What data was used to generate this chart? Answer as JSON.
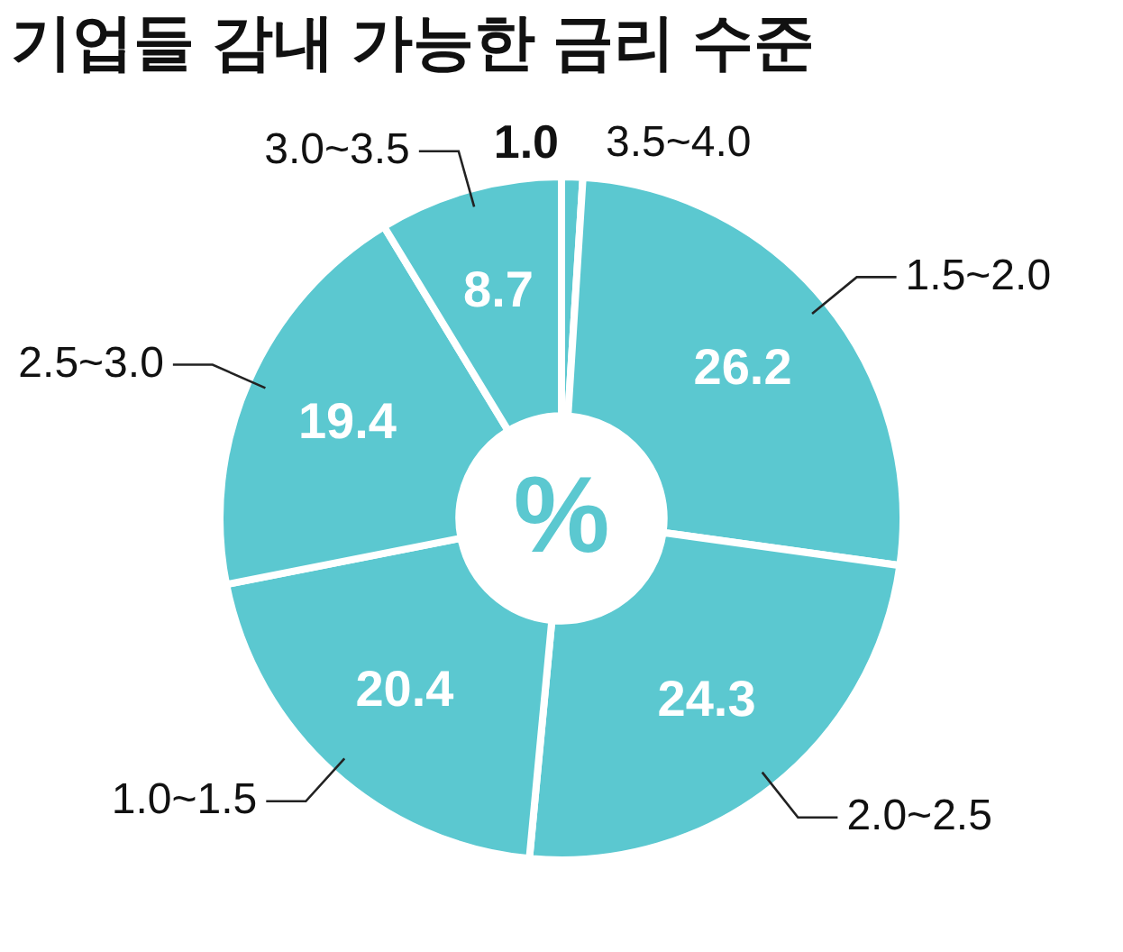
{
  "chart_data": {
    "type": "donut",
    "title": "기업들 감내 가능한 금리 수준",
    "categories": [
      "3.5~4.0",
      "1.5~2.0",
      "2.0~2.5",
      "1.0~1.5",
      "2.5~3.0",
      "3.0~3.5"
    ],
    "values": [
      1.0,
      26.2,
      24.3,
      20.4,
      19.4,
      8.7
    ],
    "colors": [
      "#5bc8d0",
      "#5bc8d0",
      "#5bc8d0",
      "#5bc8d0",
      "#5bc8d0",
      "#5bc8d0"
    ],
    "value_labels": [
      "1.0",
      "26.2",
      "24.3",
      "20.4",
      "19.4",
      "8.7"
    ],
    "legend": false,
    "annotations": [
      "%"
    ]
  }
}
